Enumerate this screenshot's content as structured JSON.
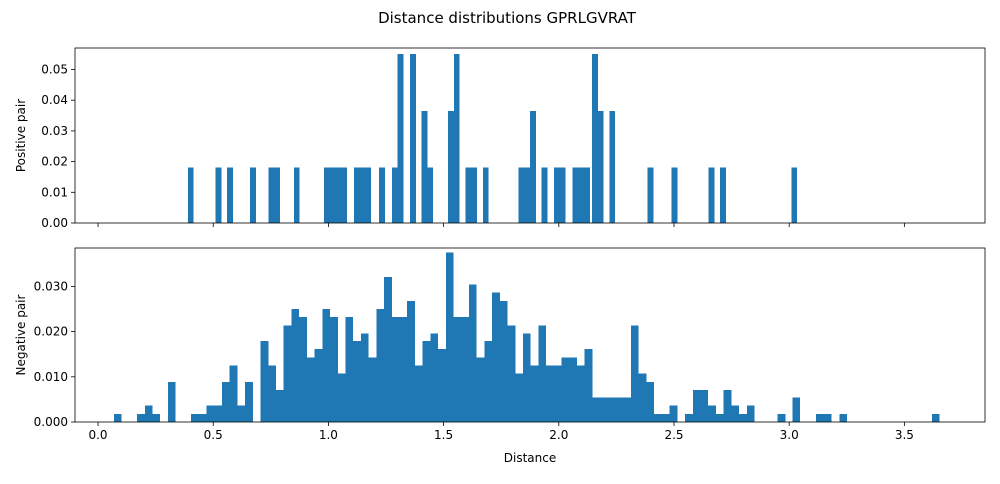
{
  "figure": {
    "title": "Distance distributions GPRLGVRAT"
  },
  "chart_data": [
    {
      "type": "bar",
      "ylabel": "Positive pair",
      "xlabel": "",
      "xlim": [
        -0.1,
        3.85
      ],
      "ylim": [
        0,
        0.057
      ],
      "x_ticks": [
        0.0,
        0.5,
        1.0,
        1.5,
        2.0,
        2.5,
        3.0,
        3.5
      ],
      "x_tick_labels_visible": false,
      "y_ticks": [
        0.0,
        0.01,
        0.02,
        0.03,
        0.04,
        0.05
      ],
      "y_tick_labels": [
        "0.00",
        "0.01",
        "0.02",
        "0.03",
        "0.04",
        "0.05"
      ],
      "bin_width": 0.025,
      "color": "#1f77b4",
      "bins": [
        [
          0.39,
          0.018
        ],
        [
          0.51,
          0.018
        ],
        [
          0.56,
          0.018
        ],
        [
          0.66,
          0.018
        ],
        [
          0.74,
          0.018
        ],
        [
          0.765,
          0.018
        ],
        [
          0.85,
          0.018
        ],
        [
          0.98,
          0.018
        ],
        [
          1.005,
          0.018
        ],
        [
          1.03,
          0.018
        ],
        [
          1.055,
          0.018
        ],
        [
          1.11,
          0.018
        ],
        [
          1.135,
          0.018
        ],
        [
          1.16,
          0.018
        ],
        [
          1.22,
          0.018
        ],
        [
          1.275,
          0.018
        ],
        [
          1.3,
          0.055
        ],
        [
          1.355,
          0.055
        ],
        [
          1.405,
          0.0365
        ],
        [
          1.43,
          0.018
        ],
        [
          1.52,
          0.0365
        ],
        [
          1.545,
          0.055
        ],
        [
          1.595,
          0.018
        ],
        [
          1.62,
          0.018
        ],
        [
          1.67,
          0.018
        ],
        [
          1.825,
          0.018
        ],
        [
          1.85,
          0.018
        ],
        [
          1.875,
          0.0365
        ],
        [
          1.925,
          0.018
        ],
        [
          1.98,
          0.018
        ],
        [
          2.005,
          0.018
        ],
        [
          2.06,
          0.018
        ],
        [
          2.085,
          0.018
        ],
        [
          2.11,
          0.018
        ],
        [
          2.145,
          0.055
        ],
        [
          2.17,
          0.0365
        ],
        [
          2.22,
          0.0365
        ],
        [
          2.385,
          0.018
        ],
        [
          2.49,
          0.018
        ],
        [
          2.65,
          0.018
        ],
        [
          2.7,
          0.018
        ],
        [
          3.01,
          0.018
        ]
      ]
    },
    {
      "type": "bar",
      "ylabel": "Negative pair",
      "xlabel": "Distance",
      "xlim": [
        -0.1,
        3.85
      ],
      "ylim": [
        0,
        0.0385
      ],
      "x_ticks": [
        0.0,
        0.5,
        1.0,
        1.5,
        2.0,
        2.5,
        3.0,
        3.5
      ],
      "x_tick_labels": [
        "0.0",
        "0.5",
        "1.0",
        "1.5",
        "2.0",
        "2.5",
        "3.0",
        "3.5"
      ],
      "y_ticks": [
        0.0,
        0.01,
        0.02,
        0.03
      ],
      "y_tick_labels": [
        "0.000",
        "0.010",
        "0.020",
        "0.030"
      ],
      "bin_width": 0.0335,
      "color": "#1f77b4",
      "bins": [
        [
          0.069,
          0.0018
        ],
        [
          0.1695,
          0.0018
        ],
        [
          0.203,
          0.0036
        ],
        [
          0.2365,
          0.0018
        ],
        [
          0.3035,
          0.0089
        ],
        [
          0.404,
          0.0018
        ],
        [
          0.4375,
          0.0018
        ],
        [
          0.471,
          0.0036
        ],
        [
          0.5045,
          0.0036
        ],
        [
          0.538,
          0.0089
        ],
        [
          0.5715,
          0.0125
        ],
        [
          0.605,
          0.0036
        ],
        [
          0.6385,
          0.0089
        ],
        [
          0.7055,
          0.0179
        ],
        [
          0.739,
          0.0125
        ],
        [
          0.7725,
          0.0071
        ],
        [
          0.806,
          0.0214
        ],
        [
          0.8395,
          0.025
        ],
        [
          0.873,
          0.0232
        ],
        [
          0.9065,
          0.0143
        ],
        [
          0.94,
          0.0161
        ],
        [
          0.9735,
          0.025
        ],
        [
          1.007,
          0.0232
        ],
        [
          1.0405,
          0.0107
        ],
        [
          1.074,
          0.0232
        ],
        [
          1.1075,
          0.0179
        ],
        [
          1.141,
          0.0196
        ],
        [
          1.1745,
          0.0143
        ],
        [
          1.208,
          0.025
        ],
        [
          1.2415,
          0.0321
        ],
        [
          1.275,
          0.0232
        ],
        [
          1.3085,
          0.0232
        ],
        [
          1.342,
          0.0268
        ],
        [
          1.3755,
          0.0125
        ],
        [
          1.409,
          0.0179
        ],
        [
          1.4425,
          0.0196
        ],
        [
          1.476,
          0.0161
        ],
        [
          1.5095,
          0.0375
        ],
        [
          1.543,
          0.0232
        ],
        [
          1.5765,
          0.0232
        ],
        [
          1.61,
          0.0304
        ],
        [
          1.6435,
          0.0143
        ],
        [
          1.677,
          0.0179
        ],
        [
          1.7105,
          0.0286
        ],
        [
          1.744,
          0.0268
        ],
        [
          1.7775,
          0.0214
        ],
        [
          1.811,
          0.0107
        ],
        [
          1.8445,
          0.0196
        ],
        [
          1.878,
          0.0125
        ],
        [
          1.9115,
          0.0214
        ],
        [
          1.945,
          0.0125
        ],
        [
          1.9785,
          0.0125
        ],
        [
          2.012,
          0.0143
        ],
        [
          2.0455,
          0.0143
        ],
        [
          2.079,
          0.0125
        ],
        [
          2.1125,
          0.0161
        ],
        [
          2.146,
          0.0054
        ],
        [
          2.1795,
          0.0054
        ],
        [
          2.213,
          0.0054
        ],
        [
          2.2465,
          0.0054
        ],
        [
          2.28,
          0.0054
        ],
        [
          2.3135,
          0.0214
        ],
        [
          2.347,
          0.0107
        ],
        [
          2.3805,
          0.0089
        ],
        [
          2.414,
          0.0018
        ],
        [
          2.4475,
          0.0018
        ],
        [
          2.481,
          0.0036
        ],
        [
          2.548,
          0.0018
        ],
        [
          2.5815,
          0.0071
        ],
        [
          2.615,
          0.0071
        ],
        [
          2.6485,
          0.0036
        ],
        [
          2.682,
          0.0018
        ],
        [
          2.7155,
          0.0071
        ],
        [
          2.749,
          0.0036
        ],
        [
          2.7825,
          0.0018
        ],
        [
          2.816,
          0.0036
        ],
        [
          2.95,
          0.0018
        ],
        [
          3.0135,
          0.0054
        ],
        [
          3.117,
          0.0018
        ],
        [
          3.1505,
          0.0018
        ],
        [
          3.218,
          0.0018
        ],
        [
          3.6195,
          0.0018
        ]
      ]
    }
  ]
}
